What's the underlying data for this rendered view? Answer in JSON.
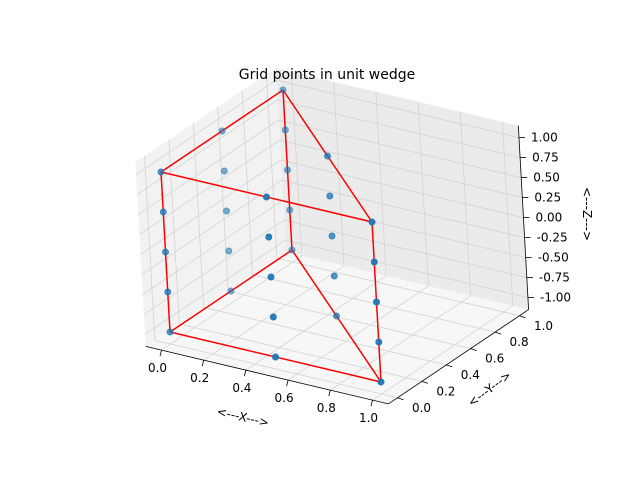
{
  "chart_data": {
    "type": "scatter3d",
    "title": "Grid points in unit wedge",
    "xlabel": "<---X--->",
    "ylabel": "<---Y--->",
    "zlabel": "<---Z--->",
    "xlim": [
      0,
      1
    ],
    "ylim": [
      0,
      1
    ],
    "zlim": [
      -1,
      1
    ],
    "grid": true,
    "x_ticks": [
      "0.0",
      "0.2",
      "0.4",
      "0.6",
      "0.8",
      "1.0"
    ],
    "y_ticks": [
      "0.0",
      "0.2",
      "0.4",
      "0.6",
      "0.8",
      "1.0"
    ],
    "z_ticks": [
      "-1.00",
      "-0.75",
      "-0.50",
      "-0.25",
      "0.00",
      "0.25",
      "0.50",
      "0.75",
      "1.00"
    ],
    "point_color": "#1f77b4",
    "edge_color": "#ff0000",
    "points": [
      [
        0,
        0,
        -1
      ],
      [
        0.5,
        0,
        -1
      ],
      [
        1,
        0,
        -1
      ],
      [
        0,
        0.5,
        -1
      ],
      [
        0.5,
        0.5,
        -1
      ],
      [
        0,
        1,
        -1
      ],
      [
        0,
        0,
        -0.5
      ],
      [
        0.5,
        0,
        -0.5
      ],
      [
        1,
        0,
        -0.5
      ],
      [
        0,
        0.5,
        -0.5
      ],
      [
        0.5,
        0.5,
        -0.5
      ],
      [
        0,
        1,
        -0.5
      ],
      [
        0,
        0,
        0
      ],
      [
        0.5,
        0,
        0
      ],
      [
        1,
        0,
        0
      ],
      [
        0,
        0.5,
        0
      ],
      [
        0.5,
        0.5,
        0
      ],
      [
        0,
        1,
        0
      ],
      [
        0,
        0,
        0.5
      ],
      [
        0.5,
        0,
        0.5
      ],
      [
        1,
        0,
        0.5
      ],
      [
        0,
        0.5,
        0.5
      ],
      [
        0.5,
        0.5,
        0.5
      ],
      [
        0,
        1,
        0.5
      ],
      [
        0,
        0,
        1
      ],
      [
        0.5,
        0,
        1
      ],
      [
        1,
        0,
        1
      ],
      [
        0,
        0.5,
        1
      ],
      [
        0.5,
        0.5,
        1
      ],
      [
        0,
        1,
        1
      ]
    ],
    "edges": [
      [
        [
          0,
          0,
          -1
        ],
        [
          1,
          0,
          -1
        ]
      ],
      [
        [
          1,
          0,
          -1
        ],
        [
          0,
          1,
          -1
        ]
      ],
      [
        [
          0,
          1,
          -1
        ],
        [
          0,
          0,
          -1
        ]
      ],
      [
        [
          0,
          0,
          1
        ],
        [
          1,
          0,
          1
        ]
      ],
      [
        [
          1,
          0,
          1
        ],
        [
          0,
          1,
          1
        ]
      ],
      [
        [
          0,
          1,
          1
        ],
        [
          0,
          0,
          1
        ]
      ],
      [
        [
          0,
          0,
          -1
        ],
        [
          0,
          0,
          1
        ]
      ],
      [
        [
          1,
          0,
          -1
        ],
        [
          1,
          0,
          1
        ]
      ],
      [
        [
          0,
          1,
          -1
        ],
        [
          0,
          1,
          1
        ]
      ]
    ]
  }
}
